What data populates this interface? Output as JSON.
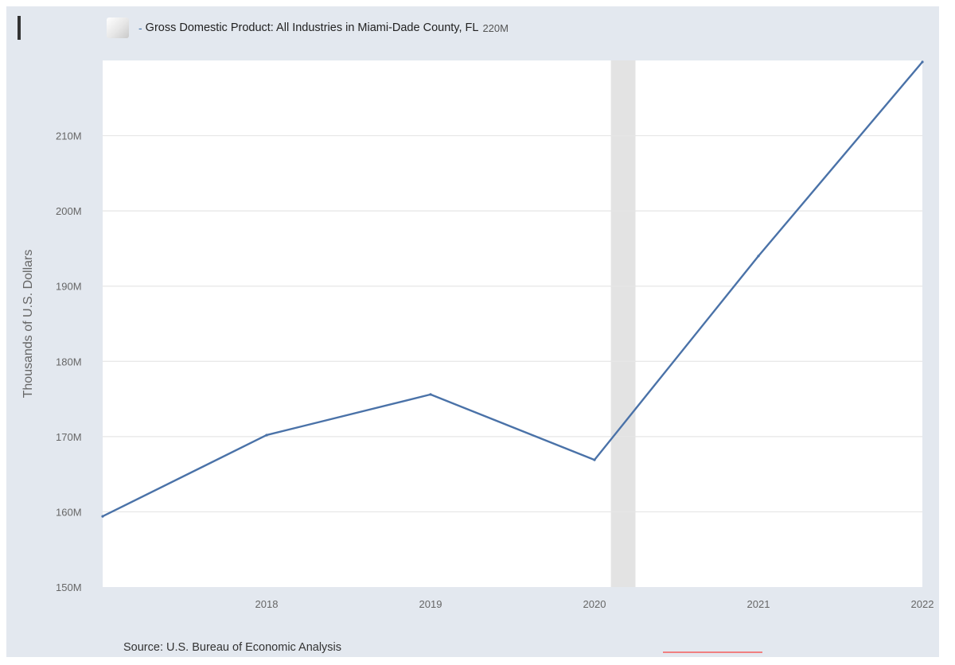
{
  "legend": {
    "dash": "-",
    "series_name": "Gross Domestic Product: All Industries in Miami-Dade County, FL",
    "current_value": "220M"
  },
  "source": "Source: U.S. Bureau of Economic Analysis",
  "colors": {
    "series": "#4a72a8",
    "recession_band": "#e3e3e3",
    "grid": "#e6e6e6",
    "plot_bg": "#ffffff",
    "frame_bg": "#e3e8ef",
    "accent": "#f08080"
  },
  "chart_data": {
    "type": "line",
    "title": "",
    "xlabel": "",
    "ylabel": "Thousands of U.S. Dollars",
    "x": [
      2017,
      2018,
      2019,
      2020,
      2021,
      2022
    ],
    "x_tick_labels": [
      "2018",
      "2019",
      "2020",
      "2021",
      "2022"
    ],
    "y_tick_labels": [
      "150M",
      "160M",
      "170M",
      "180M",
      "190M",
      "200M",
      "210M"
    ],
    "ylim": [
      150,
      220
    ],
    "series": [
      {
        "name": "Gross Domestic Product: All Industries in Miami-Dade County, FL",
        "values": [
          159.4,
          170.2,
          175.6,
          166.9,
          194.0,
          219.8
        ]
      }
    ],
    "recession_shading": {
      "start": 2020.1,
      "end": 2020.25
    },
    "grid": true,
    "legend_position": "top-left"
  }
}
